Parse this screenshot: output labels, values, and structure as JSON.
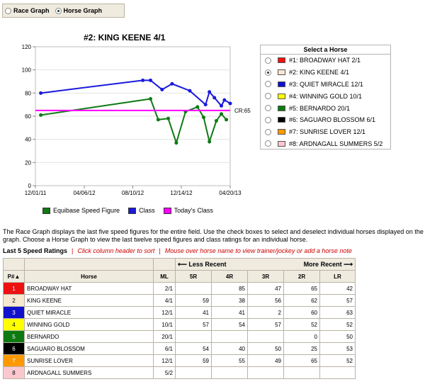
{
  "toggle": {
    "race_label": "Race Graph",
    "horse_label": "Horse Graph",
    "selected": "horse"
  },
  "chart": {
    "title": "#2: KING KEENE  4/1",
    "cr_label": "CR:65",
    "colors": {
      "speed": "#0f7a14",
      "class": "#1a1adc",
      "today": "#ff00ff"
    }
  },
  "chart_data": {
    "type": "line",
    "title": "#2: KING KEENE  4/1",
    "x_ticks": [
      "12/01/11",
      "04/06/12",
      "08/10/12",
      "12/14/12",
      "04/20/13"
    ],
    "x_range": [
      "2011-12-01",
      "2013-04-20"
    ],
    "ylim": [
      0,
      120
    ],
    "y_ticks": [
      0,
      20,
      40,
      60,
      80,
      100,
      120
    ],
    "grid": true,
    "legend_position": "bottom",
    "series": [
      {
        "name": "Equibase Speed Figure",
        "color": "#0f7a14",
        "x": [
          "2011-12-15",
          "2012-09-25",
          "2012-10-15",
          "2012-11-10",
          "2012-12-01",
          "2012-12-25",
          "2013-01-25",
          "2013-02-10",
          "2013-02-25",
          "2013-03-15",
          "2013-03-28",
          "2013-04-10"
        ],
        "y": [
          61,
          75,
          57,
          58,
          37,
          64,
          68,
          59,
          38,
          56,
          62,
          57
        ]
      },
      {
        "name": "Class",
        "color": "#1a1adc",
        "x": [
          "2011-12-15",
          "2012-09-05",
          "2012-09-25",
          "2012-10-25",
          "2012-11-20",
          "2013-01-05",
          "2013-02-15",
          "2013-02-25",
          "2013-03-10",
          "2013-03-28",
          "2013-04-05",
          "2013-04-20"
        ],
        "y": [
          80,
          91,
          91,
          83,
          88,
          82,
          70,
          81,
          76,
          69,
          74,
          71
        ]
      },
      {
        "name": "Today's Class",
        "color": "#ff00ff",
        "x": [
          "2011-12-01",
          "2013-04-20"
        ],
        "y": [
          65,
          65
        ]
      }
    ]
  },
  "select_horse": {
    "title": "Select a Horse",
    "selected": 1,
    "horses": [
      {
        "label": "#1: BROADWAY HAT  2/1",
        "color": "#ee1111"
      },
      {
        "label": "#2: KING KEENE  4/1",
        "color": "#f7e6d1"
      },
      {
        "label": "#3: QUIET MIRACLE  12/1",
        "color": "#1111cc"
      },
      {
        "label": "#4: WINNING GOLD  10/1",
        "color": "#ffff00"
      },
      {
        "label": "#5: BERNARDO  20/1",
        "color": "#0c7a10"
      },
      {
        "label": "#6: SAGUARO BLOSSOM  6/1",
        "color": "#000000"
      },
      {
        "label": "#7: SUNRISE LOVER  12/1",
        "color": "#ff9900"
      },
      {
        "label": "#8: ARDNAGALL SUMMERS  5/2",
        "color": "#fbc8cf"
      }
    ]
  },
  "description": "The Race Graph displays the last five speed figures for the entire field. Use the check boxes to select and deselect individual horses displayed on the graph. Choose a Horse Graph to view the last twelve speed figures and class ratings for an individual horse.",
  "ratings": {
    "title": "Last 5 Speed Ratings",
    "hint1": "Click column header to sort",
    "hint2": "Mouse over horse name to view trainer/jockey or add a horse note",
    "less_recent": "Less Recent",
    "more_recent": "More Recent",
    "headers": {
      "p": "P#",
      "horse": "Horse",
      "ml": "ML",
      "r5": "5R",
      "r4": "4R",
      "r3": "3R",
      "r2": "2R",
      "lr": "LR"
    },
    "rows": [
      {
        "p": "1",
        "horse": "BROADWAY HAT",
        "ml": "2/1",
        "r5": "",
        "r4": "85",
        "r3": "47",
        "r2": "65",
        "lr": "42",
        "bg": "#ee1111",
        "fg": "#ffffff"
      },
      {
        "p": "2",
        "horse": "KING KEENE",
        "ml": "4/1",
        "r5": "59",
        "r4": "38",
        "r3": "56",
        "r2": "62",
        "lr": "57",
        "bg": "#f7e6d1",
        "fg": "#000000"
      },
      {
        "p": "3",
        "horse": "QUIET MIRACLE",
        "ml": "12/1",
        "r5": "41",
        "r4": "41",
        "r3": "2",
        "r2": "60",
        "lr": "63",
        "bg": "#1111cc",
        "fg": "#ffffff"
      },
      {
        "p": "4",
        "horse": "WINNING GOLD",
        "ml": "10/1",
        "r5": "57",
        "r4": "54",
        "r3": "57",
        "r2": "52",
        "lr": "52",
        "bg": "#ffff00",
        "fg": "#000000"
      },
      {
        "p": "5",
        "horse": "BERNARDO",
        "ml": "20/1",
        "r5": "",
        "r4": "",
        "r3": "",
        "r2": "0",
        "lr": "50",
        "bg": "#0c7a10",
        "fg": "#ffffff"
      },
      {
        "p": "6",
        "horse": "SAGUARO BLOSSOM",
        "ml": "6/1",
        "r5": "54",
        "r4": "40",
        "r3": "50",
        "r2": "25",
        "lr": "53",
        "bg": "#000000",
        "fg": "#ffffff"
      },
      {
        "p": "7",
        "horse": "SUNRISE LOVER",
        "ml": "12/1",
        "r5": "59",
        "r4": "55",
        "r3": "49",
        "r2": "65",
        "lr": "52",
        "bg": "#ff9900",
        "fg": "#ffffff"
      },
      {
        "p": "8",
        "horse": "ARDNAGALL SUMMERS",
        "ml": "5/2",
        "r5": "",
        "r4": "",
        "r3": "",
        "r2": "",
        "lr": "",
        "bg": "#fbc8cf",
        "fg": "#000000"
      }
    ]
  }
}
